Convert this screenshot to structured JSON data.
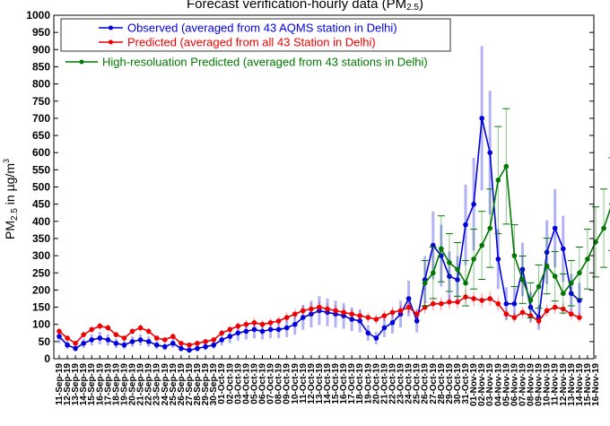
{
  "chart_data": {
    "type": "line",
    "title": "Forecast verification-hourly data (PM",
    "title_sub": "2.5",
    "title_close": ")",
    "ylabel_main": "PM",
    "ylabel_sub": "2.5",
    "ylabel_tail": " in µg/m",
    "ylabel_sup": "3",
    "ylim": [
      0,
      1000
    ],
    "y_ticks": [
      0,
      50,
      100,
      150,
      200,
      250,
      300,
      350,
      400,
      450,
      500,
      550,
      600,
      650,
      700,
      750,
      800,
      850,
      900,
      950,
      1000
    ],
    "x_ticks": [
      "11-Sep-19",
      "12-Sep-19",
      "13-Sep-19",
      "14-Sep-19",
      "15-Sep-19",
      "16-Sep-19",
      "17-Sep-19",
      "18-Sep-19",
      "19-Sep-19",
      "20-Sep-19",
      "21-Sep-19",
      "22-Sep-19",
      "23-Sep-19",
      "24-Sep-19",
      "25-Sep-19",
      "26-Sep-19",
      "27-Sep-19",
      "28-Sep-19",
      "29-Sep-19",
      "30-Sep-19",
      "01-Oct-19",
      "02-Oct-19",
      "03-Oct-19",
      "04-Oct-19",
      "05-Oct-19",
      "06-Oct-19",
      "07-Oct-19",
      "08-Oct-19",
      "09-Oct-19",
      "10-Oct-19",
      "11-Oct-19",
      "12-Oct-19",
      "13-Oct-19",
      "14-Oct-19",
      "15-Oct-19",
      "16-Oct-19",
      "17-Oct-19",
      "18-Oct-19",
      "19-Oct-19",
      "20-Oct-19",
      "21-Oct-19",
      "22-Oct-19",
      "23-Oct-19",
      "24-Oct-19",
      "25-Oct-19",
      "26-Oct-19",
      "27-Oct-19",
      "28-Oct-19",
      "29-Oct-19",
      "30-Oct-19",
      "31-Oct-19",
      "01-Nov-19",
      "02-Nov-19",
      "03-Nov-19",
      "04-Nov-19",
      "05-Nov-19",
      "06-Nov-19",
      "07-Nov-19",
      "08-Nov-19",
      "09-Nov-19",
      "10-Nov-19",
      "11-Nov-19",
      "12-Nov-19",
      "13-Nov-19",
      "14-Nov-19",
      "15-Nov-19",
      "16-Nov-19"
    ],
    "legend_placement": "top-left",
    "series": [
      {
        "name": "Observed (averaged from 43 AQMS station in Delhi)",
        "color": "#0000dd",
        "x_start": "11-Sep-19",
        "values": [
          65,
          40,
          30,
          45,
          55,
          60,
          55,
          45,
          40,
          50,
          55,
          50,
          40,
          35,
          45,
          30,
          25,
          30,
          35,
          40,
          55,
          65,
          75,
          80,
          85,
          80,
          85,
          85,
          90,
          100,
          120,
          130,
          140,
          135,
          130,
          125,
          115,
          110,
          75,
          60,
          90,
          105,
          130,
          175,
          110,
          230,
          330,
          300,
          240,
          230,
          390,
          450,
          700,
          600,
          290,
          160,
          160,
          260,
          150,
          120,
          310,
          380,
          320,
          190,
          170
        ]
      },
      {
        "name": "Predicted (averaged from all 43 Station in Delhi)",
        "color": "#ee0000",
        "x_start": "11-Sep-19",
        "values": [
          80,
          60,
          45,
          70,
          85,
          95,
          90,
          70,
          60,
          80,
          90,
          80,
          60,
          55,
          65,
          45,
          40,
          45,
          50,
          55,
          75,
          85,
          95,
          100,
          105,
          100,
          105,
          110,
          120,
          130,
          140,
          145,
          150,
          145,
          140,
          135,
          130,
          125,
          120,
          115,
          125,
          135,
          140,
          150,
          130,
          150,
          160,
          160,
          165,
          165,
          180,
          175,
          170,
          175,
          160,
          130,
          120,
          135,
          125,
          110,
          140,
          150,
          145,
          130,
          120
        ]
      },
      {
        "name": "High-resoluation Predicted (averaged from 43 stations in Delhi)",
        "color": "#007700",
        "x_start": "26-Oct-19",
        "values": [
          220,
          250,
          320,
          280,
          260,
          220,
          290,
          330,
          380,
          520,
          560,
          300,
          230,
          170,
          210,
          270,
          240,
          190,
          220,
          250,
          290,
          340,
          380,
          450
        ]
      }
    ]
  }
}
